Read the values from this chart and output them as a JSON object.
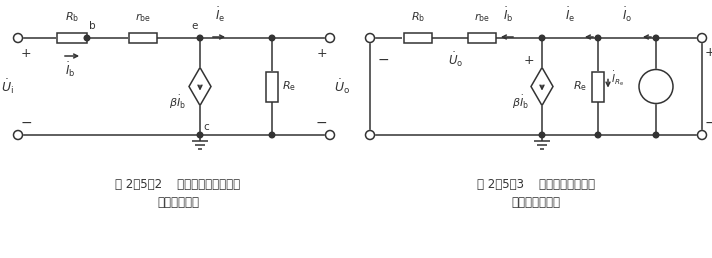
{
  "fig_width": 7.12,
  "fig_height": 2.58,
  "dpi": 100,
  "bg_color": "#ffffff",
  "line_color": "#333333",
  "caption1_line1": "图 2．5．2    基本共集放大电路的",
  "caption1_line2": "交流等效电路",
  "caption2_line1": "图 2．5．3    基本共集放大电路",
  "caption2_line2": "输出电阻的求解",
  "font_size_caption": 8.5
}
